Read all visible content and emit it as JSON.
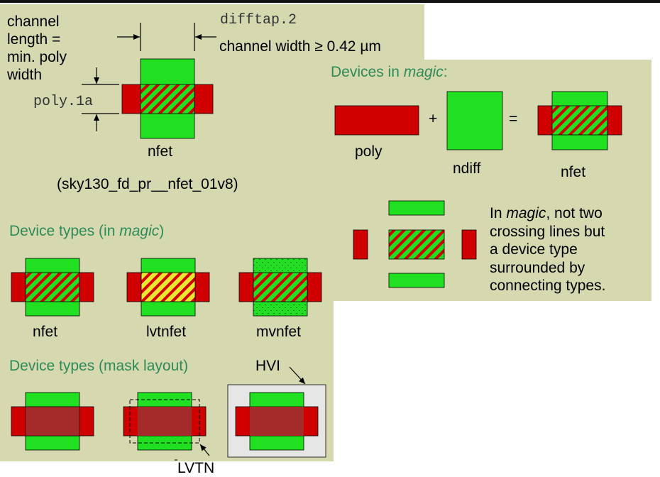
{
  "colors": {
    "panel_bg": "#d6d8b0",
    "diffusion": "#21e021",
    "poly": "#d10000",
    "mask_poly": "#a52a2a",
    "lvt_stripe": "#e8e830",
    "hvi_box": "#e6e6e6",
    "heading": "#2e8b57",
    "top_bar": "#111111"
  },
  "top_left": {
    "channel_length_lines": [
      "channel",
      "length =",
      "min. poly",
      "width"
    ],
    "poly_rule": "poly.1a",
    "diff_rule": "difftap.2",
    "channel_width_rule": "channel width ≥ 0.42 µm",
    "device_label": "nfet",
    "cell_name": "(sky130_fd_pr__nfet_01v8)"
  },
  "magic_panel": {
    "heading_prefix": "Devices in ",
    "heading_magic": "magic",
    "heading_suffix": ":",
    "plus": "+",
    "equals": "=",
    "poly_label": "poly",
    "ndiff_label": "ndiff",
    "result_label": "nfet",
    "note_line1_prefix": "In ",
    "note_line1_magic": "magic",
    "note_line1_suffix": ", not two",
    "note_line2": "crossing lines but",
    "note_line3": "a device type",
    "note_line4": "surrounded by",
    "note_line5": "connecting types."
  },
  "device_types": {
    "heading_prefix": "Device types (in ",
    "heading_magic": "magic",
    "heading_suffix": ")",
    "labels": [
      "nfet",
      "lvtnfet",
      "mvnfet"
    ]
  },
  "mask_layout": {
    "heading": "Device types (mask layout)",
    "hvi_label": "HVI",
    "lvtn_label": "LVTN"
  }
}
